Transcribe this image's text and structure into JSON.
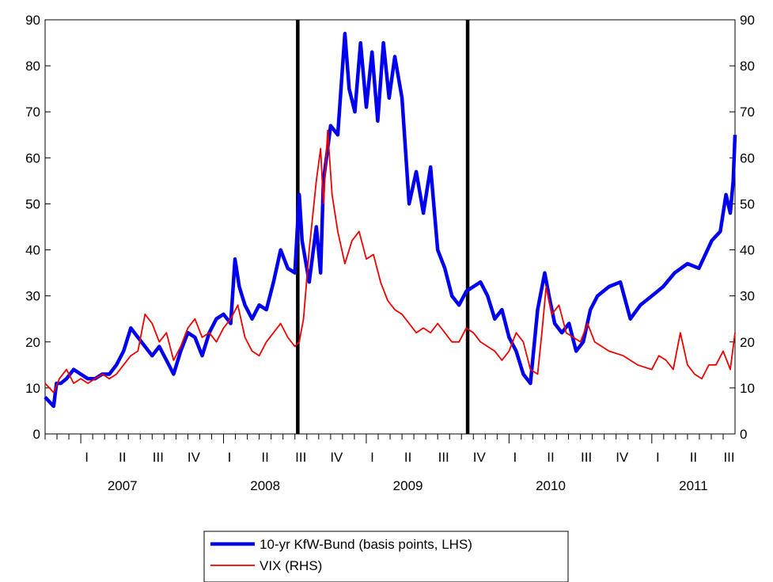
{
  "chart_data": {
    "type": "line",
    "title": "",
    "xlabel": "",
    "ylabel": "",
    "ylim": [
      0,
      90
    ],
    "y2lim": [
      0,
      90
    ],
    "yticks": [
      0,
      10,
      20,
      30,
      40,
      50,
      60,
      70,
      80,
      90
    ],
    "y_tick_labels": [
      "0",
      "10",
      "20",
      "30",
      "40",
      "50",
      "60",
      "70",
      "80",
      "90"
    ],
    "y2_tick_labels": [
      "0",
      "10",
      "20",
      "30",
      "40",
      "50",
      "60",
      "70",
      "80",
      "90"
    ],
    "x_range": [
      2006.75,
      2011.583
    ],
    "quarter_labels": [
      {
        "x": 2007.0,
        "label": "I"
      },
      {
        "x": 2007.25,
        "label": "II"
      },
      {
        "x": 2007.5,
        "label": "III"
      },
      {
        "x": 2007.75,
        "label": "IV"
      },
      {
        "x": 2008.0,
        "label": "I"
      },
      {
        "x": 2008.25,
        "label": "II"
      },
      {
        "x": 2008.5,
        "label": "III"
      },
      {
        "x": 2008.75,
        "label": "IV"
      },
      {
        "x": 2009.0,
        "label": "I"
      },
      {
        "x": 2009.25,
        "label": "II"
      },
      {
        "x": 2009.5,
        "label": "III"
      },
      {
        "x": 2009.75,
        "label": "IV"
      },
      {
        "x": 2010.0,
        "label": "I"
      },
      {
        "x": 2010.25,
        "label": "II"
      },
      {
        "x": 2010.5,
        "label": "III"
      },
      {
        "x": 2010.75,
        "label": "IV"
      },
      {
        "x": 2011.0,
        "label": "I"
      },
      {
        "x": 2011.25,
        "label": "II"
      },
      {
        "x": 2011.5,
        "label": "III"
      }
    ],
    "year_labels": [
      {
        "x": 2007.25,
        "label": "2007"
      },
      {
        "x": 2008.25,
        "label": "2008"
      },
      {
        "x": 2009.25,
        "label": "2009"
      },
      {
        "x": 2010.25,
        "label": "2010"
      },
      {
        "x": 2011.25,
        "label": "2011"
      }
    ],
    "vertical_markers": [
      2008.52,
      2009.71
    ],
    "grid": false,
    "legend_position": "bottom-center",
    "series": [
      {
        "name": "10-yr KfW-Bund (basis points, LHS)",
        "axis": "left",
        "color": "#0000ee",
        "x": [
          2006.75,
          2006.78,
          2006.81,
          2006.83,
          2006.86,
          2006.9,
          2006.95,
          2007.0,
          2007.05,
          2007.1,
          2007.15,
          2007.2,
          2007.25,
          2007.3,
          2007.35,
          2007.4,
          2007.45,
          2007.5,
          2007.55,
          2007.6,
          2007.65,
          2007.7,
          2007.75,
          2007.8,
          2007.85,
          2007.9,
          2007.95,
          2008.0,
          2008.05,
          2008.08,
          2008.11,
          2008.15,
          2008.2,
          2008.25,
          2008.3,
          2008.35,
          2008.4,
          2008.45,
          2008.5,
          2008.53,
          2008.55,
          2008.6,
          2008.65,
          2008.68,
          2008.7,
          2008.75,
          2008.8,
          2008.85,
          2008.88,
          2008.92,
          2008.96,
          2009.0,
          2009.04,
          2009.08,
          2009.12,
          2009.16,
          2009.2,
          2009.25,
          2009.3,
          2009.35,
          2009.4,
          2009.45,
          2009.5,
          2009.55,
          2009.6,
          2009.65,
          2009.7,
          2009.75,
          2009.8,
          2009.85,
          2009.9,
          2009.95,
          2010.0,
          2010.05,
          2010.1,
          2010.15,
          2010.2,
          2010.25,
          2010.28,
          2010.32,
          2010.37,
          2010.42,
          2010.47,
          2010.52,
          2010.57,
          2010.62,
          2010.7,
          2010.78,
          2010.85,
          2010.92,
          2011.0,
          2011.08,
          2011.16,
          2011.25,
          2011.33,
          2011.42,
          2011.48,
          2011.52,
          2011.55,
          2011.57,
          2011.583
        ],
        "y": [
          8,
          7,
          6,
          11,
          11,
          12,
          14,
          13,
          12,
          12,
          13,
          13,
          15,
          18,
          23,
          21,
          19,
          17,
          19,
          16,
          13,
          18,
          22,
          21,
          17,
          22,
          25,
          26,
          24,
          38,
          32,
          28,
          25,
          28,
          27,
          33,
          40,
          36,
          35,
          52,
          42,
          33,
          45,
          35,
          55,
          67,
          65,
          87,
          75,
          70,
          85,
          71,
          83,
          68,
          85,
          73,
          82,
          73,
          50,
          57,
          48,
          58,
          40,
          36,
          30,
          28,
          31,
          32,
          33,
          30,
          25,
          27,
          21,
          18,
          13,
          11,
          27,
          35,
          30,
          24,
          22,
          24,
          18,
          20,
          27,
          30,
          32,
          33,
          25,
          28,
          30,
          32,
          35,
          37,
          36,
          42,
          44,
          52,
          48,
          55,
          65
        ]
      },
      {
        "name": "VIX (RHS)",
        "axis": "right",
        "color": "#ee0000",
        "x": [
          2006.75,
          2006.78,
          2006.81,
          2006.85,
          2006.9,
          2006.95,
          2007.0,
          2007.05,
          2007.1,
          2007.15,
          2007.2,
          2007.25,
          2007.3,
          2007.35,
          2007.4,
          2007.45,
          2007.5,
          2007.55,
          2007.6,
          2007.65,
          2007.7,
          2007.75,
          2007.8,
          2007.85,
          2007.9,
          2007.95,
          2008.0,
          2008.05,
          2008.1,
          2008.15,
          2008.2,
          2008.25,
          2008.3,
          2008.35,
          2008.4,
          2008.45,
          2008.5,
          2008.53,
          2008.56,
          2008.6,
          2008.65,
          2008.68,
          2008.7,
          2008.73,
          2008.76,
          2008.8,
          2008.85,
          2008.9,
          2008.95,
          2009.0,
          2009.05,
          2009.1,
          2009.15,
          2009.2,
          2009.25,
          2009.3,
          2009.35,
          2009.4,
          2009.45,
          2009.5,
          2009.55,
          2009.6,
          2009.65,
          2009.7,
          2009.75,
          2009.8,
          2009.85,
          2009.9,
          2009.95,
          2010.0,
          2010.05,
          2010.1,
          2010.15,
          2010.2,
          2010.23,
          2010.26,
          2010.3,
          2010.35,
          2010.4,
          2010.45,
          2010.5,
          2010.55,
          2010.6,
          2010.7,
          2010.8,
          2010.9,
          2011.0,
          2011.05,
          2011.1,
          2011.15,
          2011.2,
          2011.25,
          2011.3,
          2011.35,
          2011.4,
          2011.45,
          2011.5,
          2011.55,
          2011.583
        ],
        "y": [
          11,
          10,
          9,
          12,
          14,
          11,
          12,
          11,
          12,
          13,
          12,
          13,
          15,
          17,
          18,
          26,
          24,
          20,
          22,
          16,
          19,
          23,
          25,
          21,
          22,
          20,
          23,
          25,
          28,
          21,
          18,
          17,
          20,
          22,
          24,
          21,
          19,
          20,
          25,
          40,
          55,
          62,
          50,
          66,
          52,
          44,
          37,
          42,
          44,
          38,
          39,
          33,
          29,
          27,
          26,
          24,
          22,
          23,
          22,
          24,
          22,
          20,
          20,
          23,
          22,
          20,
          19,
          18,
          16,
          18,
          22,
          20,
          14,
          13,
          22,
          32,
          26,
          28,
          22,
          21,
          20,
          24,
          20,
          18,
          17,
          15,
          14,
          17,
          16,
          14,
          22,
          15,
          13,
          12,
          15,
          15,
          18,
          14,
          22
        ]
      }
    ]
  }
}
